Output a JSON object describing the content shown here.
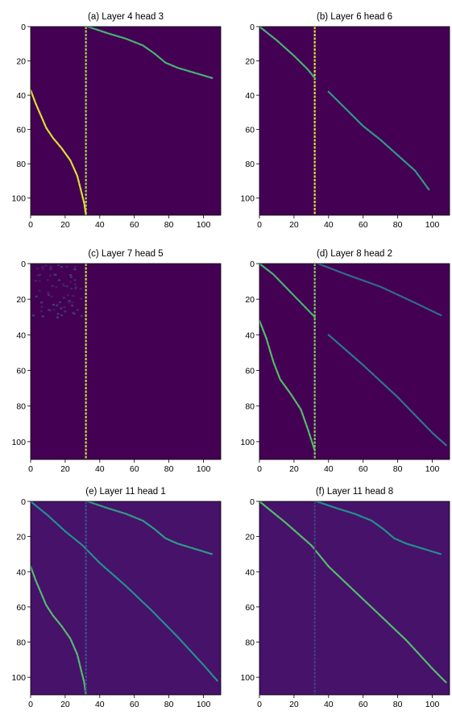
{
  "chart_data": [
    {
      "type": "heatmap",
      "title": "(a) Layer 4 head 3",
      "xticks": [
        "0",
        "20",
        "40",
        "60",
        "80",
        "100"
      ],
      "yticks": [
        "0",
        "20",
        "40",
        "60",
        "80",
        "100"
      ],
      "xlim": [
        0,
        110
      ],
      "ylim": [
        110,
        0
      ],
      "colormap": "viridis",
      "background_color": "#440154",
      "highlights": [
        {
          "kind": "vline",
          "x": 32,
          "y_range": [
            0,
            110
          ],
          "intensity": 0.85
        },
        {
          "kind": "curve",
          "points": [
            [
              33,
              0
            ],
            [
              45,
              4
            ],
            [
              55,
              7
            ],
            [
              65,
              11
            ],
            [
              72,
              16
            ],
            [
              78,
              21
            ],
            [
              85,
              24
            ],
            [
              95,
              27
            ],
            [
              105,
              30
            ]
          ],
          "intensity": 0.65
        },
        {
          "kind": "curve",
          "points": [
            [
              0,
              37
            ],
            [
              3,
              45
            ],
            [
              6,
              52
            ],
            [
              9,
              59
            ],
            [
              13,
              65
            ],
            [
              18,
              71
            ],
            [
              23,
              78
            ],
            [
              27,
              87
            ],
            [
              29,
              95
            ],
            [
              31,
              103
            ],
            [
              32,
              110
            ]
          ],
          "intensity": 0.95
        }
      ]
    },
    {
      "type": "heatmap",
      "title": "(b) Layer 6 head 6",
      "xticks": [
        "0",
        "20",
        "40",
        "60",
        "80",
        "100"
      ],
      "yticks": [
        "0",
        "20",
        "40",
        "60",
        "80",
        "100"
      ],
      "xlim": [
        0,
        110
      ],
      "ylim": [
        110,
        0
      ],
      "colormap": "viridis",
      "background_color": "#440154",
      "highlights": [
        {
          "kind": "vline",
          "x": 32,
          "y_range": [
            0,
            110
          ],
          "intensity": 0.95
        },
        {
          "kind": "curve",
          "points": [
            [
              0,
              0
            ],
            [
              10,
              8
            ],
            [
              20,
              17
            ],
            [
              28,
              25
            ],
            [
              32,
              30
            ]
          ],
          "intensity": 0.65
        },
        {
          "kind": "curve",
          "points": [
            [
              40,
              38
            ],
            [
              50,
              48
            ],
            [
              60,
              58
            ],
            [
              70,
              66
            ],
            [
              80,
              75
            ],
            [
              90,
              84
            ],
            [
              98,
              95
            ]
          ],
          "intensity": 0.55
        }
      ]
    },
    {
      "type": "heatmap",
      "title": "(c) Layer 7 head 5",
      "xticks": [
        "0",
        "20",
        "40",
        "60",
        "80",
        "100"
      ],
      "yticks": [
        "0",
        "20",
        "40",
        "60",
        "80",
        "100"
      ],
      "xlim": [
        0,
        110
      ],
      "ylim": [
        110,
        0
      ],
      "colormap": "viridis",
      "background_color": "#440154",
      "highlights": [
        {
          "kind": "vline",
          "x": 32,
          "y_range": [
            0,
            110
          ],
          "intensity": 0.9
        },
        {
          "kind": "noise",
          "x_range": [
            0,
            30
          ],
          "y_range": [
            0,
            30
          ],
          "intensity": 0.2
        }
      ]
    },
    {
      "type": "heatmap",
      "title": "(d) Layer 8 head 2",
      "xticks": [
        "0",
        "20",
        "40",
        "60",
        "80",
        "100"
      ],
      "yticks": [
        "0",
        "20",
        "40",
        "60",
        "80",
        "100"
      ],
      "xlim": [
        0,
        110
      ],
      "ylim": [
        110,
        0
      ],
      "colormap": "viridis",
      "background_color": "#440154",
      "highlights": [
        {
          "kind": "vline",
          "x": 32,
          "y_range": [
            0,
            110
          ],
          "intensity": 0.8
        },
        {
          "kind": "curve",
          "points": [
            [
              0,
              0
            ],
            [
              8,
              6
            ],
            [
              16,
              14
            ],
            [
              24,
              22
            ],
            [
              32,
              30
            ]
          ],
          "intensity": 0.65
        },
        {
          "kind": "curve",
          "points": [
            [
              0,
              32
            ],
            [
              4,
              42
            ],
            [
              8,
              55
            ],
            [
              12,
              65
            ],
            [
              18,
              73
            ],
            [
              24,
              82
            ],
            [
              28,
              93
            ],
            [
              32,
              105
            ]
          ],
          "intensity": 0.7
        },
        {
          "kind": "curve",
          "points": [
            [
              34,
              0
            ],
            [
              50,
              6
            ],
            [
              70,
              13
            ],
            [
              90,
              22
            ],
            [
              105,
              29
            ]
          ],
          "intensity": 0.35
        },
        {
          "kind": "curve",
          "points": [
            [
              40,
              40
            ],
            [
              60,
              57
            ],
            [
              80,
              75
            ],
            [
              100,
              95
            ],
            [
              108,
              102
            ]
          ],
          "intensity": 0.4
        }
      ]
    },
    {
      "type": "heatmap",
      "title": "(e) Layer 11 head 1",
      "xticks": [
        "0",
        "20",
        "40",
        "60",
        "80",
        "100"
      ],
      "yticks": [
        "0",
        "20",
        "40",
        "60",
        "80",
        "100"
      ],
      "xlim": [
        0,
        110
      ],
      "ylim": [
        110,
        0
      ],
      "colormap": "viridis",
      "background_color": "#46126a",
      "highlights": [
        {
          "kind": "curve",
          "points": [
            [
              0,
              0
            ],
            [
              10,
              8
            ],
            [
              20,
              17
            ],
            [
              30,
              25
            ],
            [
              40,
              35
            ],
            [
              55,
              48
            ],
            [
              70,
              62
            ],
            [
              85,
              77
            ],
            [
              100,
              93
            ],
            [
              108,
              102
            ]
          ],
          "intensity": 0.5
        },
        {
          "kind": "curve",
          "points": [
            [
              33,
              0
            ],
            [
              45,
              4
            ],
            [
              55,
              7
            ],
            [
              65,
              11
            ],
            [
              72,
              16
            ],
            [
              78,
              21
            ],
            [
              85,
              24
            ],
            [
              95,
              27
            ],
            [
              105,
              30
            ]
          ],
          "intensity": 0.55
        },
        {
          "kind": "curve",
          "points": [
            [
              0,
              37
            ],
            [
              3,
              45
            ],
            [
              6,
              52
            ],
            [
              9,
              59
            ],
            [
              13,
              65
            ],
            [
              18,
              71
            ],
            [
              23,
              78
            ],
            [
              27,
              87
            ],
            [
              29,
              95
            ],
            [
              31,
              103
            ],
            [
              32,
              110
            ]
          ],
          "intensity": 0.7
        },
        {
          "kind": "vline",
          "x": 32,
          "y_range": [
            0,
            110
          ],
          "intensity": 0.25
        }
      ]
    },
    {
      "type": "heatmap",
      "title": "(f) Layer 11 head 8",
      "xticks": [
        "0",
        "20",
        "40",
        "60",
        "80",
        "100"
      ],
      "yticks": [
        "0",
        "20",
        "40",
        "60",
        "80",
        "100"
      ],
      "xlim": [
        0,
        110
      ],
      "ylim": [
        110,
        0
      ],
      "colormap": "viridis",
      "background_color": "#46126a",
      "highlights": [
        {
          "kind": "curve",
          "points": [
            [
              0,
              0
            ],
            [
              15,
              12
            ],
            [
              30,
              25
            ],
            [
              40,
              37
            ],
            [
              55,
              51
            ],
            [
              70,
              65
            ],
            [
              85,
              79
            ],
            [
              100,
              95
            ],
            [
              108,
              103
            ]
          ],
          "intensity": 0.7
        },
        {
          "kind": "curve",
          "points": [
            [
              33,
              0
            ],
            [
              45,
              4
            ],
            [
              55,
              7
            ],
            [
              65,
              11
            ],
            [
              72,
              16
            ],
            [
              78,
              21
            ],
            [
              85,
              24
            ],
            [
              95,
              27
            ],
            [
              105,
              30
            ]
          ],
          "intensity": 0.5
        },
        {
          "kind": "vline",
          "x": 32,
          "y_range": [
            0,
            110
          ],
          "intensity": 0.2
        }
      ]
    }
  ]
}
